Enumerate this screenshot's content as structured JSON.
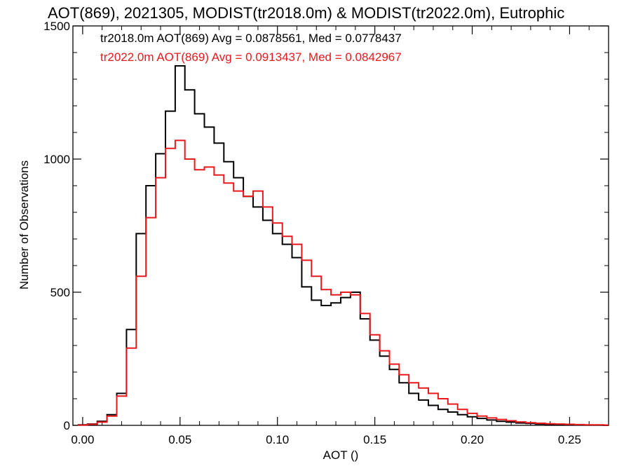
{
  "chart_data": {
    "type": "line",
    "style": "step histogram",
    "title": "AOT(869), 2021305, MODIST(tr2018.0m) & MODIST(tr2022.0m), Eutrophic",
    "xlabel": "AOT ()",
    "ylabel": "Number of Observations",
    "xlim": [
      -0.005,
      0.27
    ],
    "ylim": [
      0,
      1500
    ],
    "xticks": [
      "0.00",
      "0.05",
      "0.10",
      "0.15",
      "0.20",
      "0.25"
    ],
    "yticks": [
      "0",
      "500",
      "1000",
      "1500"
    ],
    "legend_placement": "top-left",
    "grid": false,
    "x": [
      0.0,
      0.005,
      0.01,
      0.015,
      0.02,
      0.025,
      0.03,
      0.035,
      0.04,
      0.045,
      0.05,
      0.055,
      0.06,
      0.065,
      0.07,
      0.075,
      0.08,
      0.085,
      0.09,
      0.095,
      0.1,
      0.105,
      0.11,
      0.115,
      0.12,
      0.125,
      0.13,
      0.135,
      0.14,
      0.145,
      0.15,
      0.155,
      0.16,
      0.165,
      0.17,
      0.175,
      0.18,
      0.185,
      0.19,
      0.195,
      0.2,
      0.205,
      0.21,
      0.215,
      0.22,
      0.225,
      0.23,
      0.235,
      0.24,
      0.245,
      0.25,
      0.255,
      0.26,
      0.265,
      0.27
    ],
    "series": [
      {
        "name": "tr2018.0m AOT(869) Avg = 0.0878561, Med = 0.0778437",
        "color": "#000000",
        "values": [
          2,
          5,
          15,
          40,
          120,
          360,
          720,
          900,
          1020,
          1180,
          1350,
          1260,
          1170,
          1120,
          1060,
          990,
          930,
          860,
          820,
          770,
          720,
          680,
          630,
          520,
          470,
          450,
          460,
          480,
          500,
          400,
          320,
          260,
          210,
          160,
          120,
          95,
          75,
          60,
          50,
          40,
          32,
          26,
          20,
          15,
          12,
          9,
          7,
          5,
          4,
          3,
          2,
          2,
          1,
          1,
          0
        ]
      },
      {
        "name": "tr2022.0m AOT(869) Avg = 0.0913437, Med = 0.0842967",
        "color": "#e8191c",
        "values": [
          1,
          4,
          12,
          35,
          110,
          290,
          560,
          780,
          930,
          1040,
          1070,
          1000,
          960,
          970,
          940,
          910,
          880,
          860,
          880,
          820,
          760,
          710,
          680,
          620,
          560,
          510,
          490,
          500,
          490,
          420,
          340,
          280,
          230,
          190,
          160,
          140,
          120,
          100,
          80,
          60,
          45,
          35,
          28,
          22,
          17,
          13,
          10,
          8,
          6,
          5,
          4,
          3,
          2,
          2,
          1
        ]
      }
    ]
  }
}
